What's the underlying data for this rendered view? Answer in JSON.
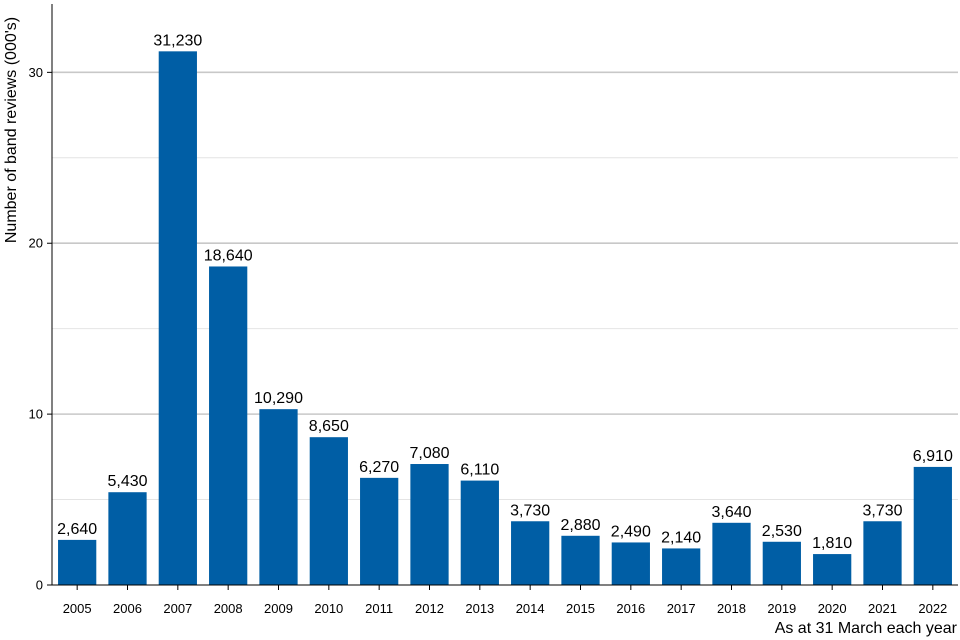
{
  "chart_data": {
    "type": "bar",
    "categories": [
      "2005",
      "2006",
      "2007",
      "2008",
      "2009",
      "2010",
      "2011",
      "2012",
      "2013",
      "2014",
      "2015",
      "2016",
      "2017",
      "2018",
      "2019",
      "2020",
      "2021",
      "2022"
    ],
    "values": [
      2.64,
      5.43,
      31.23,
      18.64,
      10.29,
      8.65,
      6.27,
      7.08,
      6.11,
      3.73,
      2.88,
      2.49,
      2.14,
      3.64,
      2.53,
      1.81,
      3.73,
      6.91
    ],
    "data_labels": [
      "2,640",
      "5,430",
      "31,230",
      "18,640",
      "10,290",
      "8,650",
      "6,270",
      "7,080",
      "6,110",
      "3,730",
      "2,880",
      "2,490",
      "2,140",
      "3,640",
      "2,530",
      "1,810",
      "3,730",
      "6,910"
    ],
    "title": "",
    "xlabel": "As at 31 March each year",
    "ylabel": "Number of band reviews (000's)",
    "ylim": [
      0,
      34
    ],
    "yticks": [
      0,
      10,
      20,
      30
    ],
    "ytick_labels": [
      "0",
      "10",
      "20",
      "30"
    ],
    "grid": true,
    "bar_color": "#005EA5",
    "major_grid_color": "#c8c8c8",
    "minor_grid_color": "#e4e4e4"
  }
}
